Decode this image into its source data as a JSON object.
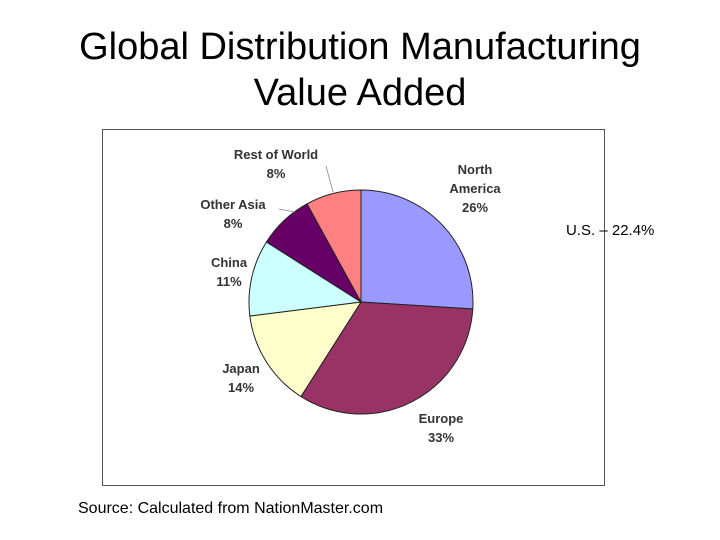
{
  "title": {
    "line1": "Global Distribution Manufacturing",
    "line2": "Value Added"
  },
  "side_note": "U.S. – 22.4%",
  "source": "Source: Calculated from NationMaster.com",
  "colors": {
    "north_america": "#9999ff",
    "europe": "#993366",
    "japan": "#ffffcc",
    "china": "#ccffff",
    "other_asia": "#660066",
    "rest_of_world": "#ff8080",
    "outline": "#222222"
  },
  "chart_data": {
    "type": "pie",
    "title": "Global Distribution Manufacturing Value Added",
    "start": "12 o'clock, clockwise",
    "slices": [
      {
        "name": "North America",
        "label_lines": [
          "North",
          "America"
        ],
        "pct_label": "26%",
        "value": 26,
        "color_key": "north_america"
      },
      {
        "name": "Europe",
        "label_lines": [
          "Europe"
        ],
        "pct_label": "33%",
        "value": 33,
        "color_key": "europe"
      },
      {
        "name": "Japan",
        "label_lines": [
          "Japan"
        ],
        "pct_label": "14%",
        "value": 14,
        "color_key": "japan"
      },
      {
        "name": "China",
        "label_lines": [
          "China"
        ],
        "pct_label": "11%",
        "value": 11,
        "color_key": "china"
      },
      {
        "name": "Other Asia",
        "label_lines": [
          "Other Asia"
        ],
        "pct_label": "8%",
        "value": 8,
        "color_key": "other_asia"
      },
      {
        "name": "Rest of World",
        "label_lines": [
          "Rest of World"
        ],
        "pct_label": "8%",
        "value": 8,
        "color_key": "rest_of_world"
      }
    ],
    "annotations": [
      "U.S. – 22.4%"
    ]
  }
}
